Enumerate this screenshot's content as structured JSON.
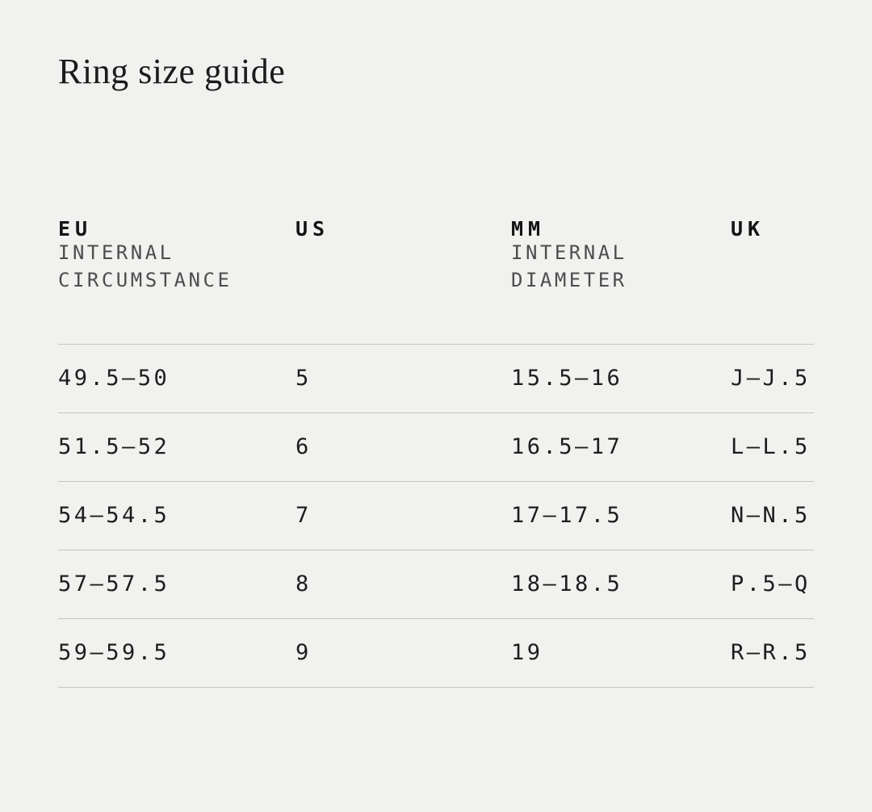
{
  "page": {
    "title": "Ring size guide",
    "background_color": "#f1f1ef",
    "text_color": "#1d1d1d",
    "divider_color": "#c4c4c2"
  },
  "table": {
    "columns": [
      {
        "code": "EU",
        "sub1": "INTERNAL",
        "sub2": "CIRCUMSTANCE"
      },
      {
        "code": "US",
        "sub1": "",
        "sub2": ""
      },
      {
        "code": "MM",
        "sub1": "INTERNAL",
        "sub2": "DIAMETER"
      },
      {
        "code": "UK",
        "sub1": "",
        "sub2": ""
      }
    ],
    "rows": [
      {
        "eu": "49.5—50",
        "us": "5",
        "mm": "15.5—16",
        "uk": "J—J.5"
      },
      {
        "eu": "51.5—52",
        "us": "6",
        "mm": "16.5—17",
        "uk": "L—L.5"
      },
      {
        "eu": "54—54.5",
        "us": "7",
        "mm": "17—17.5",
        "uk": "N—N.5"
      },
      {
        "eu": "57—57.5",
        "us": "8",
        "mm": "18—18.5",
        "uk": "P.5—Q"
      },
      {
        "eu": "59—59.5",
        "us": "9",
        "mm": "19",
        "uk": "R—R.5"
      }
    ]
  }
}
